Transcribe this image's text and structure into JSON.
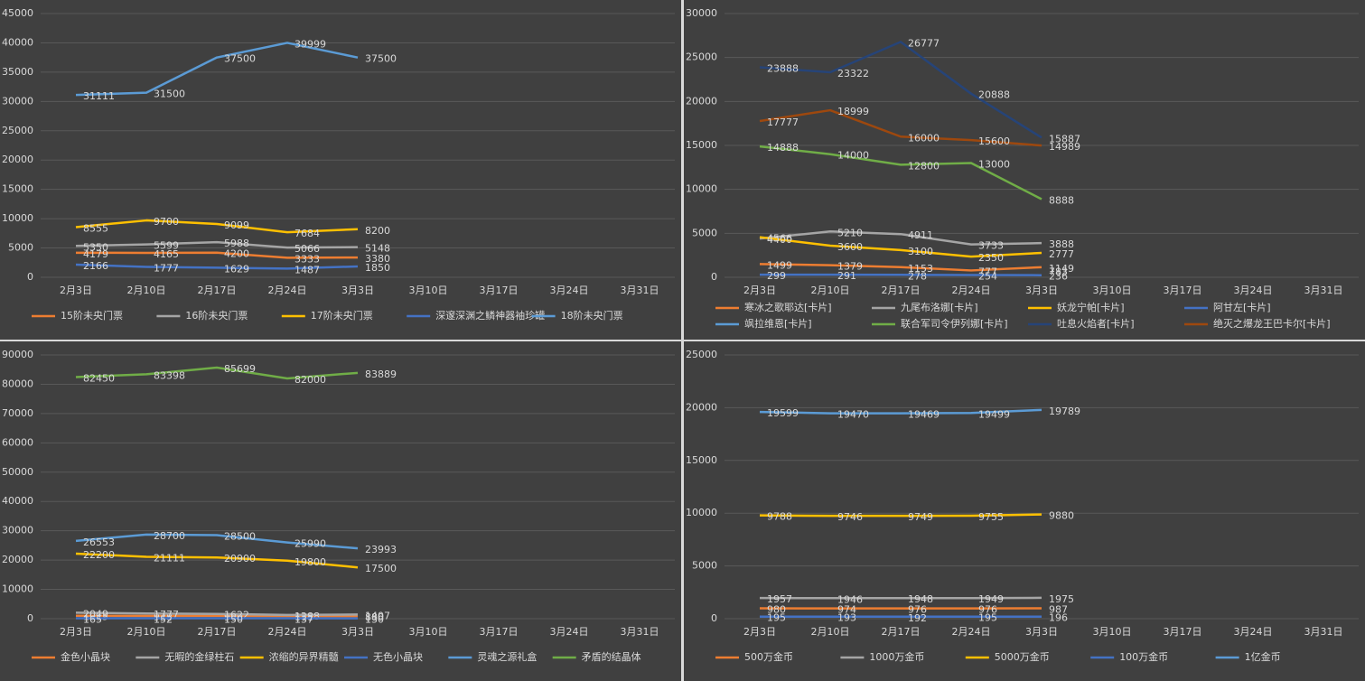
{
  "chart_data": [
    {
      "type": "line",
      "categories": [
        "2月3日",
        "2月10日",
        "2月17日",
        "2月24日",
        "3月3日",
        "3月10日",
        "3月17日",
        "3月24日",
        "3月31日"
      ],
      "ylim": [
        0,
        45000
      ],
      "yticks": [
        0,
        5000,
        10000,
        15000,
        20000,
        25000,
        30000,
        35000,
        40000,
        45000
      ],
      "grid": true,
      "legend": "bottom",
      "series": [
        {
          "name": "15阶未央门票",
          "color": "#ed7d31",
          "values": [
            4179,
            4165,
            4200,
            3333,
            3380,
            null,
            null,
            null,
            null
          ]
        },
        {
          "name": "16阶未央门票",
          "color": "#a5a5a5",
          "values": [
            5350,
            5599,
            5988,
            5066,
            5148,
            null,
            null,
            null,
            null
          ]
        },
        {
          "name": "17阶未央门票",
          "color": "#ffc000",
          "values": [
            8555,
            9700,
            9099,
            7684,
            8200,
            null,
            null,
            null,
            null
          ]
        },
        {
          "name": "深邃深渊之鳞神器袖珍罐",
          "color": "#4472c4",
          "values": [
            2166,
            1777,
            1629,
            1487,
            1850,
            null,
            null,
            null,
            null
          ]
        },
        {
          "name": "18阶未央门票",
          "color": "#5b9bd5",
          "values": [
            31111,
            31500,
            37500,
            39999,
            37500,
            null,
            null,
            null,
            null
          ]
        }
      ]
    },
    {
      "type": "line",
      "categories": [
        "2月3日",
        "2月10日",
        "2月17日",
        "2月24日",
        "3月3日",
        "3月10日",
        "3月17日",
        "3月24日",
        "3月31日"
      ],
      "ylim": [
        0,
        30000
      ],
      "yticks": [
        0,
        5000,
        10000,
        15000,
        20000,
        25000,
        30000
      ],
      "grid": true,
      "legend": "bottom",
      "series": [
        {
          "name": "寒冰之歌耶达[卡片]",
          "color": "#ed7d31",
          "values": [
            1499,
            1379,
            1153,
            777,
            1149,
            null,
            null,
            null,
            null
          ]
        },
        {
          "name": "九尾布洛娜[卡片]",
          "color": "#a5a5a5",
          "values": [
            4400,
            5210,
            4911,
            3733,
            3888,
            null,
            null,
            null,
            null
          ]
        },
        {
          "name": "妖龙宁帕[卡片]",
          "color": "#ffc000",
          "values": [
            4566,
            3600,
            3100,
            2350,
            2777,
            null,
            null,
            null,
            null
          ]
        },
        {
          "name": "阿甘左[卡片]",
          "color": "#4472c4",
          "values": [
            299,
            291,
            278,
            254,
            236,
            null,
            null,
            null,
            null
          ]
        },
        {
          "name": "飒拉维恩[卡片]",
          "color": "#5b9bd5",
          "values": [
            null,
            null,
            null,
            null,
            783,
            null,
            null,
            null,
            null
          ]
        },
        {
          "name": "联合军司令伊列娜[卡片]",
          "color": "#70ad47",
          "values": [
            14888,
            14000,
            12800,
            13000,
            8888,
            null,
            null,
            null,
            null
          ]
        },
        {
          "name": "吐息火焰者[卡片]",
          "color": "#264478",
          "values": [
            23888,
            23322,
            26777,
            20888,
            15887,
            null,
            null,
            null,
            null
          ]
        },
        {
          "name": "绝灭之爆龙王巴卡尔[卡片]",
          "color": "#9e480e",
          "values": [
            17777,
            18999,
            16000,
            15600,
            14989,
            null,
            null,
            null,
            null
          ]
        }
      ]
    },
    {
      "type": "line",
      "categories": [
        "2月3日",
        "2月10日",
        "2月17日",
        "2月24日",
        "3月3日",
        "3月10日",
        "3月17日",
        "3月24日",
        "3月31日"
      ],
      "ylim": [
        0,
        90000
      ],
      "yticks": [
        0,
        10000,
        20000,
        30000,
        40000,
        50000,
        60000,
        70000,
        80000,
        90000
      ],
      "grid": true,
      "legend": "bottom",
      "series": [
        {
          "name": "金色小晶块",
          "color": "#ed7d31",
          "values": [
            1015,
            928,
            960,
            888,
            880,
            null,
            null,
            null,
            null
          ]
        },
        {
          "name": "无暇的金绿柱石",
          "color": "#a5a5a5",
          "values": [
            2049,
            1777,
            1622,
            1288,
            1407,
            null,
            null,
            null,
            null
          ]
        },
        {
          "name": "浓缩的异界精髓",
          "color": "#ffc000",
          "values": [
            22200,
            21111,
            20900,
            19800,
            17500,
            null,
            null,
            null,
            null
          ]
        },
        {
          "name": "无色小晶块",
          "color": "#4472c4",
          "values": [
            165,
            152,
            150,
            137,
            130,
            null,
            null,
            null,
            null
          ]
        },
        {
          "name": "灵魂之源礼盒",
          "color": "#5b9bd5",
          "values": [
            26553,
            28700,
            28500,
            25990,
            23993,
            null,
            null,
            null,
            null
          ]
        },
        {
          "name": "矛盾的结晶体",
          "color": "#70ad47",
          "values": [
            82450,
            83398,
            85699,
            82000,
            83889,
            null,
            null,
            null,
            null
          ]
        }
      ]
    },
    {
      "type": "line",
      "categories": [
        "2月3日",
        "2月10日",
        "2月17日",
        "2月24日",
        "3月3日",
        "3月10日",
        "3月17日",
        "3月24日",
        "3月31日"
      ],
      "ylim": [
        0,
        25000
      ],
      "yticks": [
        0,
        5000,
        10000,
        15000,
        20000,
        25000
      ],
      "grid": true,
      "legend": "bottom",
      "series": [
        {
          "name": "500万金币",
          "color": "#ed7d31",
          "values": [
            980,
            974,
            976,
            976,
            987,
            null,
            null,
            null,
            null
          ]
        },
        {
          "name": "1000万金币",
          "color": "#a5a5a5",
          "values": [
            1957,
            1946,
            1948,
            1949,
            1975,
            null,
            null,
            null,
            null
          ]
        },
        {
          "name": "5000万金币",
          "color": "#ffc000",
          "values": [
            9788,
            9746,
            9749,
            9755,
            9880,
            null,
            null,
            null,
            null
          ]
        },
        {
          "name": "100万金币",
          "color": "#4472c4",
          "values": [
            195,
            193,
            192,
            195,
            196,
            null,
            null,
            null,
            null
          ]
        },
        {
          "name": "1亿金币",
          "color": "#5b9bd5",
          "values": [
            19599,
            19470,
            19469,
            19499,
            19789,
            null,
            null,
            null,
            null
          ]
        }
      ]
    }
  ]
}
